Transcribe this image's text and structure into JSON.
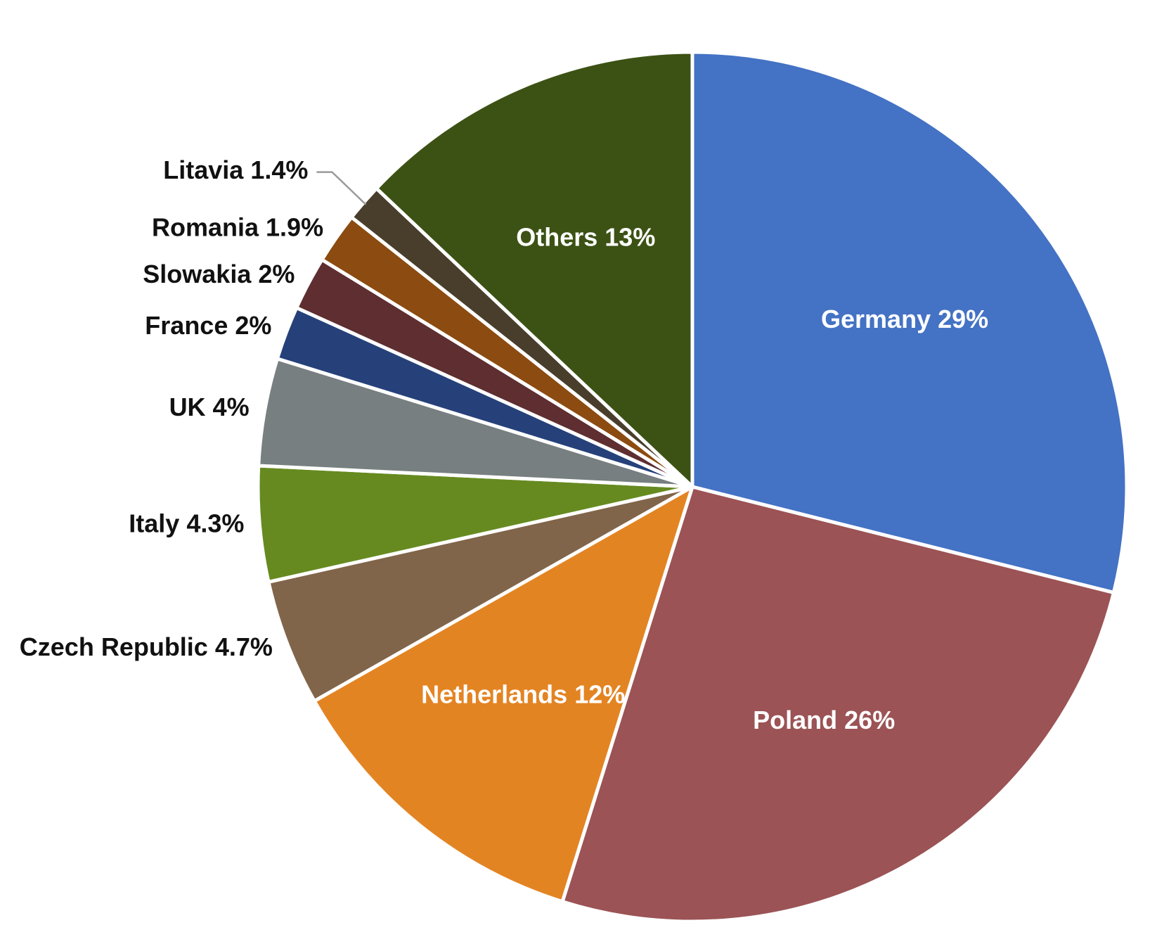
{
  "chart_data": {
    "type": "pie",
    "title": "",
    "start_direction": "top",
    "direction": "clockwise",
    "slices": [
      {
        "label": "Germany 29%",
        "name": "Germany",
        "value": 29,
        "color": "#4472C4",
        "label_position": "inside"
      },
      {
        "label": "Poland 26%",
        "name": "Poland",
        "value": 26,
        "color": "#9B5355",
        "label_position": "inside"
      },
      {
        "label": "Netherlands 12%",
        "name": "Netherlands",
        "value": 12,
        "color": "#E38423",
        "label_position": "inside"
      },
      {
        "label": "Czech Republic 4.7%",
        "name": "Czech Republic",
        "value": 4.7,
        "color": "#81654A",
        "label_position": "outside"
      },
      {
        "label": "Italy 4.3%",
        "name": "Italy",
        "value": 4.3,
        "color": "#668A20",
        "label_position": "outside"
      },
      {
        "label": "UK 4%",
        "name": "UK",
        "value": 4,
        "color": "#777F80",
        "label_position": "outside"
      },
      {
        "label": "France 2%",
        "name": "France",
        "value": 2,
        "color": "#26417A",
        "label_position": "outside"
      },
      {
        "label": "Slowakia 2%",
        "name": "Slowakia",
        "value": 2,
        "color": "#5E2E31",
        "label_position": "outside"
      },
      {
        "label": "Romania 1.9%",
        "name": "Romania",
        "value": 1.9,
        "color": "#8C4B10",
        "label_position": "outside"
      },
      {
        "label": "Litavia 1.4%",
        "name": "Litavia",
        "value": 1.4,
        "color": "#483E2B",
        "label_position": "outside"
      },
      {
        "label": "Others 13%",
        "name": "Others",
        "value": 13,
        "color": "#3C5214",
        "label_position": "inside"
      }
    ]
  }
}
